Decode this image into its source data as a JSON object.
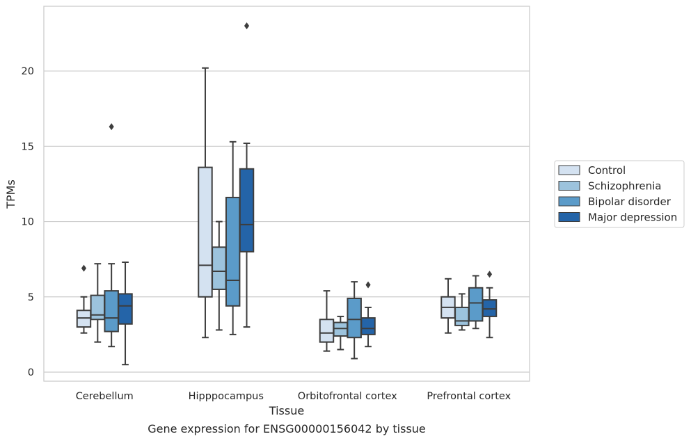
{
  "chart_data": {
    "type": "boxplot",
    "caption": "Gene expression for ENSG00000156042 by tissue",
    "xlabel": "Tissue",
    "ylabel": "TPMs",
    "ylim": [
      -0.6,
      24.3
    ],
    "yticks": [
      0,
      5,
      10,
      15,
      20
    ],
    "grid": true,
    "legend_position": "right",
    "categories": [
      "Cerebellum",
      "Hipppocampus",
      "Orbitofrontal cortex",
      "Prefrontal cortex"
    ],
    "series": [
      {
        "name": "Control",
        "color": "#d4e2f1",
        "boxes": [
          {
            "whislo": 2.6,
            "q1": 3.0,
            "med": 3.6,
            "q3": 4.1,
            "whishi": 5.0,
            "fliers": [
              6.9
            ]
          },
          {
            "whislo": 2.3,
            "q1": 5.0,
            "med": 7.1,
            "q3": 13.6,
            "whishi": 20.2,
            "fliers": []
          },
          {
            "whislo": 1.4,
            "q1": 2.0,
            "med": 2.6,
            "q3": 3.5,
            "whishi": 5.4,
            "fliers": []
          },
          {
            "whislo": 2.6,
            "q1": 3.6,
            "med": 4.3,
            "q3": 5.0,
            "whishi": 6.2,
            "fliers": []
          }
        ]
      },
      {
        "name": "Schizophrenia",
        "color": "#9cc3dd",
        "boxes": [
          {
            "whislo": 2.0,
            "q1": 3.5,
            "med": 3.8,
            "q3": 5.1,
            "whishi": 7.2,
            "fliers": []
          },
          {
            "whislo": 2.8,
            "q1": 5.5,
            "med": 6.7,
            "q3": 8.3,
            "whishi": 10.0,
            "fliers": []
          },
          {
            "whislo": 1.5,
            "q1": 2.4,
            "med": 2.9,
            "q3": 3.3,
            "whishi": 3.7,
            "fliers": []
          },
          {
            "whislo": 2.8,
            "q1": 3.1,
            "med": 3.4,
            "q3": 4.3,
            "whishi": 5.2,
            "fliers": []
          }
        ]
      },
      {
        "name": "Bipolar disorder",
        "color": "#5b9bc9",
        "boxes": [
          {
            "whislo": 1.7,
            "q1": 2.7,
            "med": 3.6,
            "q3": 5.4,
            "whishi": 7.2,
            "fliers": [
              16.3
            ]
          },
          {
            "whislo": 2.5,
            "q1": 4.4,
            "med": 6.1,
            "q3": 11.6,
            "whishi": 15.3,
            "fliers": []
          },
          {
            "whislo": 0.9,
            "q1": 2.3,
            "med": 3.5,
            "q3": 4.9,
            "whishi": 6.0,
            "fliers": []
          },
          {
            "whislo": 2.9,
            "q1": 3.4,
            "med": 4.6,
            "q3": 5.6,
            "whishi": 6.4,
            "fliers": []
          }
        ]
      },
      {
        "name": "Major depression",
        "color": "#2464a8",
        "boxes": [
          {
            "whislo": 0.5,
            "q1": 3.2,
            "med": 4.4,
            "q3": 5.2,
            "whishi": 7.3,
            "fliers": []
          },
          {
            "whislo": 3.0,
            "q1": 8.0,
            "med": 9.8,
            "q3": 13.5,
            "whishi": 15.2,
            "fliers": [
              23.0
            ]
          },
          {
            "whislo": 1.7,
            "q1": 2.5,
            "med": 2.9,
            "q3": 3.6,
            "whishi": 4.3,
            "fliers": [
              5.8
            ]
          },
          {
            "whislo": 2.3,
            "q1": 3.7,
            "med": 4.2,
            "q3": 4.8,
            "whishi": 5.6,
            "fliers": [
              6.5
            ]
          }
        ]
      }
    ]
  }
}
